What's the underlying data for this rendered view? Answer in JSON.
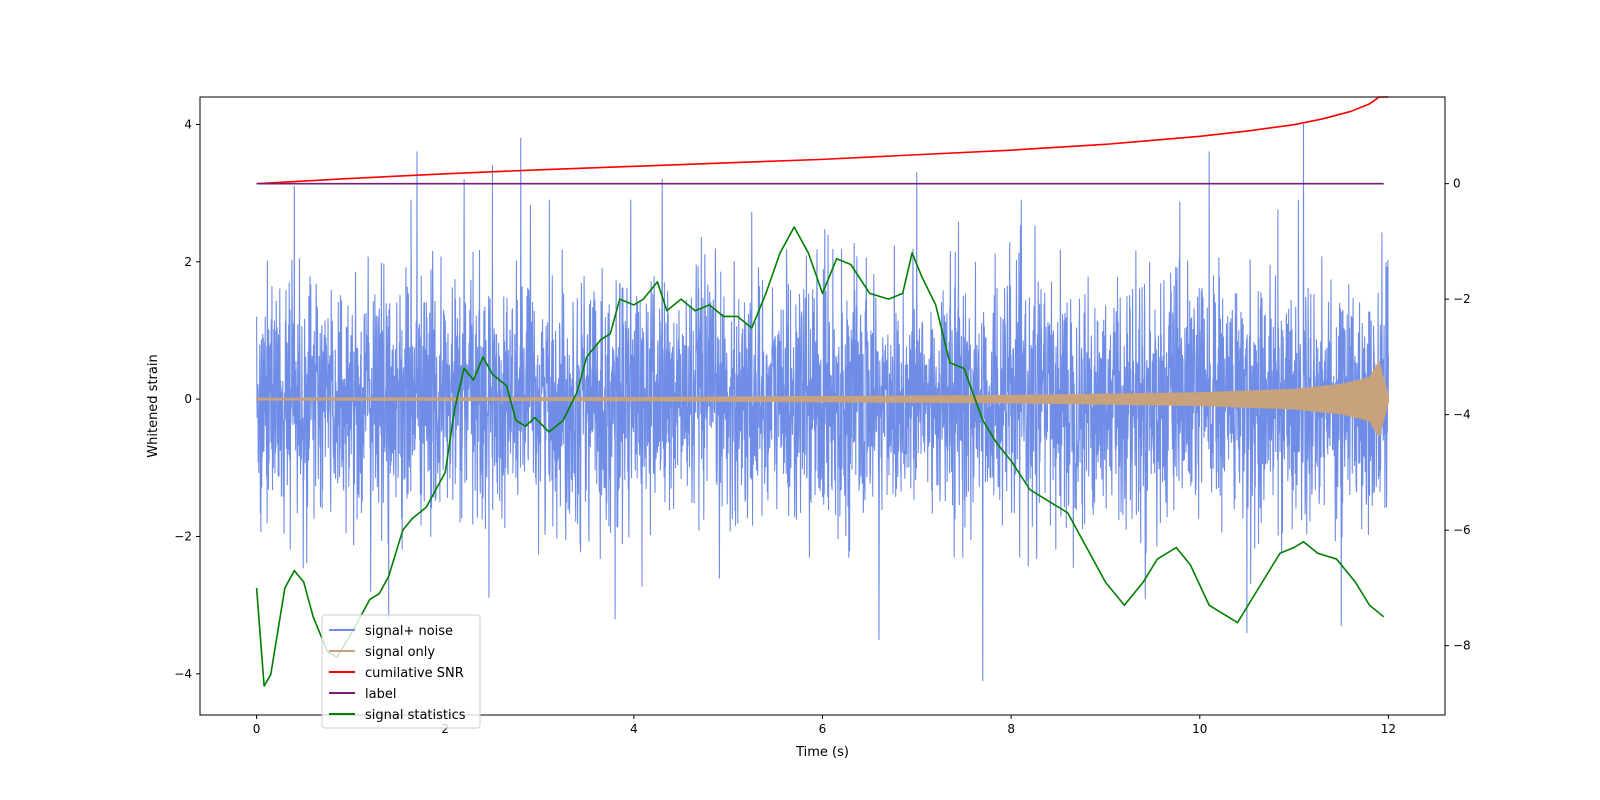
{
  "chart_data": {
    "type": "line",
    "title": "",
    "xlabel": "Time (s)",
    "ylabel_left": "Whitened strain",
    "ylabel_right": "",
    "xlim": [
      -0.6,
      12.6
    ],
    "ylim_left": [
      -4.6,
      4.4
    ],
    "ylim_right": [
      -9.2,
      1.5
    ],
    "xticks": [
      0,
      2,
      4,
      6,
      8,
      10,
      12
    ],
    "xtick_labels": [
      "0",
      "2",
      "4",
      "6",
      "8",
      "10",
      "12"
    ],
    "yticks_left": [
      -4,
      -2,
      0,
      2,
      4
    ],
    "ytick_labels_left": [
      "−4",
      "−2",
      "0",
      "2",
      "4"
    ],
    "yticks_right": [
      -8,
      -6,
      -4,
      -2,
      0
    ],
    "ytick_labels_right": [
      "−8",
      "−6",
      "−4",
      "−2",
      "0"
    ],
    "grid": false,
    "legend_position": "lower-left",
    "series": [
      {
        "name": "signal+ noise",
        "axis": "left",
        "color": "#6f8de6",
        "kind": "noise",
        "duration": 12,
        "typical_amplitude": 1.4,
        "peaks": [
          [
            0.0,
            1.2
          ],
          [
            0.4,
            3.1
          ],
          [
            1.7,
            3.6
          ],
          [
            2.2,
            3.2
          ],
          [
            2.5,
            3.4
          ],
          [
            2.8,
            3.8
          ],
          [
            4.3,
            3.2
          ],
          [
            7.0,
            3.3
          ],
          [
            10.1,
            3.6
          ],
          [
            11.1,
            4.0
          ],
          [
            1.4,
            -3.2
          ],
          [
            3.8,
            -3.2
          ],
          [
            6.6,
            -3.5
          ],
          [
            7.7,
            -4.1
          ],
          [
            10.5,
            -3.4
          ],
          [
            11.5,
            -3.3
          ]
        ]
      },
      {
        "name": "signal only",
        "axis": "left",
        "color": "#c8a27c",
        "kind": "chirp",
        "duration": 12,
        "envelope": [
          [
            0,
            0.02
          ],
          [
            4,
            0.03
          ],
          [
            8,
            0.06
          ],
          [
            10,
            0.1
          ],
          [
            11,
            0.15
          ],
          [
            11.5,
            0.22
          ],
          [
            11.8,
            0.32
          ],
          [
            11.9,
            0.55
          ],
          [
            12.0,
            0.05
          ]
        ]
      },
      {
        "name": "cumilative SNR",
        "axis": "right",
        "color": "#ff0000",
        "x": [
          0,
          1,
          2,
          3,
          4,
          5,
          6,
          7,
          8,
          9,
          10,
          10.5,
          11,
          11.3,
          11.6,
          11.8,
          11.9,
          12.0
        ],
        "y": [
          0.0,
          0.09,
          0.17,
          0.24,
          0.3,
          0.36,
          0.42,
          0.5,
          0.58,
          0.68,
          0.82,
          0.91,
          1.02,
          1.12,
          1.25,
          1.38,
          1.5,
          1.5
        ]
      },
      {
        "name": "label",
        "axis": "right",
        "color": "#7b1b7b",
        "x": [
          0,
          11.95
        ],
        "y": [
          0,
          0
        ]
      },
      {
        "name": "signal statistics",
        "axis": "right",
        "color": "#007f00",
        "x": [
          0,
          0.08,
          0.15,
          0.3,
          0.4,
          0.5,
          0.6,
          0.75,
          0.85,
          1.0,
          1.2,
          1.3,
          1.4,
          1.55,
          1.65,
          1.8,
          1.9,
          2.0,
          2.1,
          2.2,
          2.3,
          2.4,
          2.5,
          2.65,
          2.75,
          2.85,
          2.95,
          3.1,
          3.25,
          3.4,
          3.5,
          3.65,
          3.75,
          3.85,
          4.0,
          4.1,
          4.25,
          4.35,
          4.5,
          4.65,
          4.8,
          4.95,
          5.1,
          5.25,
          5.4,
          5.55,
          5.7,
          5.85,
          6.0,
          6.15,
          6.3,
          6.5,
          6.7,
          6.85,
          6.95,
          7.05,
          7.2,
          7.35,
          7.5,
          7.7,
          7.85,
          8.0,
          8.2,
          8.4,
          8.6,
          8.8,
          9.0,
          9.2,
          9.4,
          9.55,
          9.75,
          9.9,
          10.1,
          10.3,
          10.4,
          10.55,
          10.7,
          10.85,
          11.0,
          11.1,
          11.25,
          11.45,
          11.65,
          11.8,
          11.95
        ],
        "y": [
          -7.0,
          -8.7,
          -8.5,
          -7.0,
          -6.7,
          -6.9,
          -7.5,
          -8.1,
          -8.2,
          -7.8,
          -7.2,
          -7.1,
          -6.8,
          -6.0,
          -5.8,
          -5.6,
          -5.3,
          -5.0,
          -3.9,
          -3.2,
          -3.4,
          -3.0,
          -3.3,
          -3.5,
          -4.1,
          -4.2,
          -4.05,
          -4.3,
          -4.1,
          -3.6,
          -3.0,
          -2.7,
          -2.6,
          -2.0,
          -2.1,
          -2.0,
          -1.7,
          -2.2,
          -2.0,
          -2.2,
          -2.1,
          -2.3,
          -2.3,
          -2.5,
          -1.9,
          -1.2,
          -0.75,
          -1.2,
          -1.9,
          -1.3,
          -1.4,
          -1.9,
          -2.0,
          -1.9,
          -1.2,
          -1.6,
          -2.1,
          -3.1,
          -3.2,
          -4.1,
          -4.5,
          -4.8,
          -5.3,
          -5.5,
          -5.7,
          -6.3,
          -6.9,
          -7.3,
          -6.9,
          -6.5,
          -6.3,
          -6.6,
          -7.3,
          -7.5,
          -7.6,
          -7.2,
          -6.8,
          -6.4,
          -6.3,
          -6.2,
          -6.4,
          -6.5,
          -6.9,
          -7.3,
          -7.5
        ]
      }
    ]
  }
}
